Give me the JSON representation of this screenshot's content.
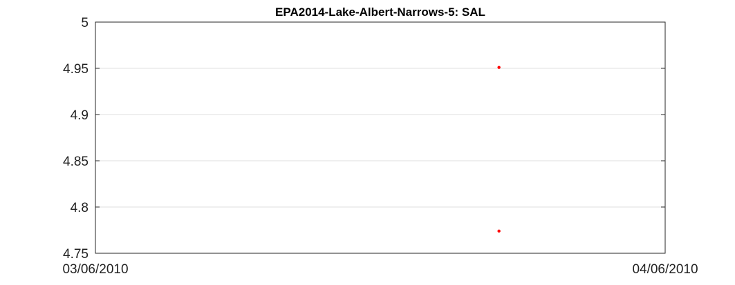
{
  "chart_data": {
    "type": "scatter",
    "title": "EPA2014-Lake-Albert-Narrows-5: SAL",
    "xlabel": "",
    "ylabel": "",
    "x_ticks": [
      "03/06/2010",
      "04/06/2010"
    ],
    "y_ticks": [
      4.75,
      4.8,
      4.85,
      4.9,
      4.95,
      5
    ],
    "y_tick_labels": [
      "4.75",
      "4.8",
      "4.85",
      "4.9",
      "4.95",
      "5"
    ],
    "xlim": [
      "03/06/2010",
      "04/06/2010"
    ],
    "ylim": [
      4.75,
      5
    ],
    "grid": true,
    "series": [
      {
        "color": "#ff0000",
        "points": [
          {
            "x": "03/06/2010 17:00",
            "y": 4.951
          },
          {
            "x": "03/06/2010 17:00",
            "y": 4.774
          }
        ]
      }
    ]
  }
}
